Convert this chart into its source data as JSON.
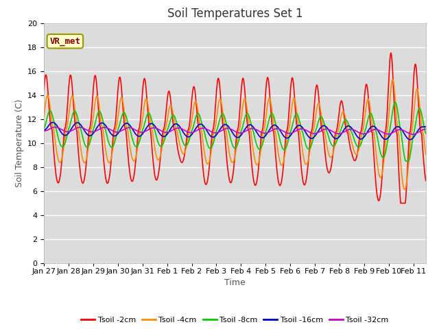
{
  "title": "Soil Temperatures Set 1",
  "xlabel": "Time",
  "ylabel": "Soil Temperature (C)",
  "annotation": "VR_met",
  "ylim": [
    0,
    20
  ],
  "yticks": [
    0,
    2,
    4,
    6,
    8,
    10,
    12,
    14,
    16,
    18,
    20
  ],
  "xtick_labels": [
    "Jan 27",
    "Jan 28",
    "Jan 29",
    "Jan 30",
    "Jan 31",
    "Feb 1",
    "Feb 2",
    "Feb 3",
    "Feb 4",
    "Feb 5",
    "Feb 6",
    "Feb 7",
    "Feb 8",
    "Feb 9",
    "Feb 10",
    "Feb 11"
  ],
  "colors": {
    "Tsoil -2cm": "#ff0000",
    "Tsoil -4cm": "#ff8c00",
    "Tsoil -8cm": "#00cc00",
    "Tsoil -16cm": "#0000cc",
    "Tsoil -32cm": "#cc00cc"
  },
  "plot_bg_color": "#dcdcdc",
  "fig_bg_color": "#ffffff",
  "grid_color": "#ffffff",
  "title_fontsize": 12,
  "axis_label_fontsize": 9,
  "tick_fontsize": 8,
  "linewidth": 1.2,
  "n_days": 15.5,
  "pts_per_day": 48
}
